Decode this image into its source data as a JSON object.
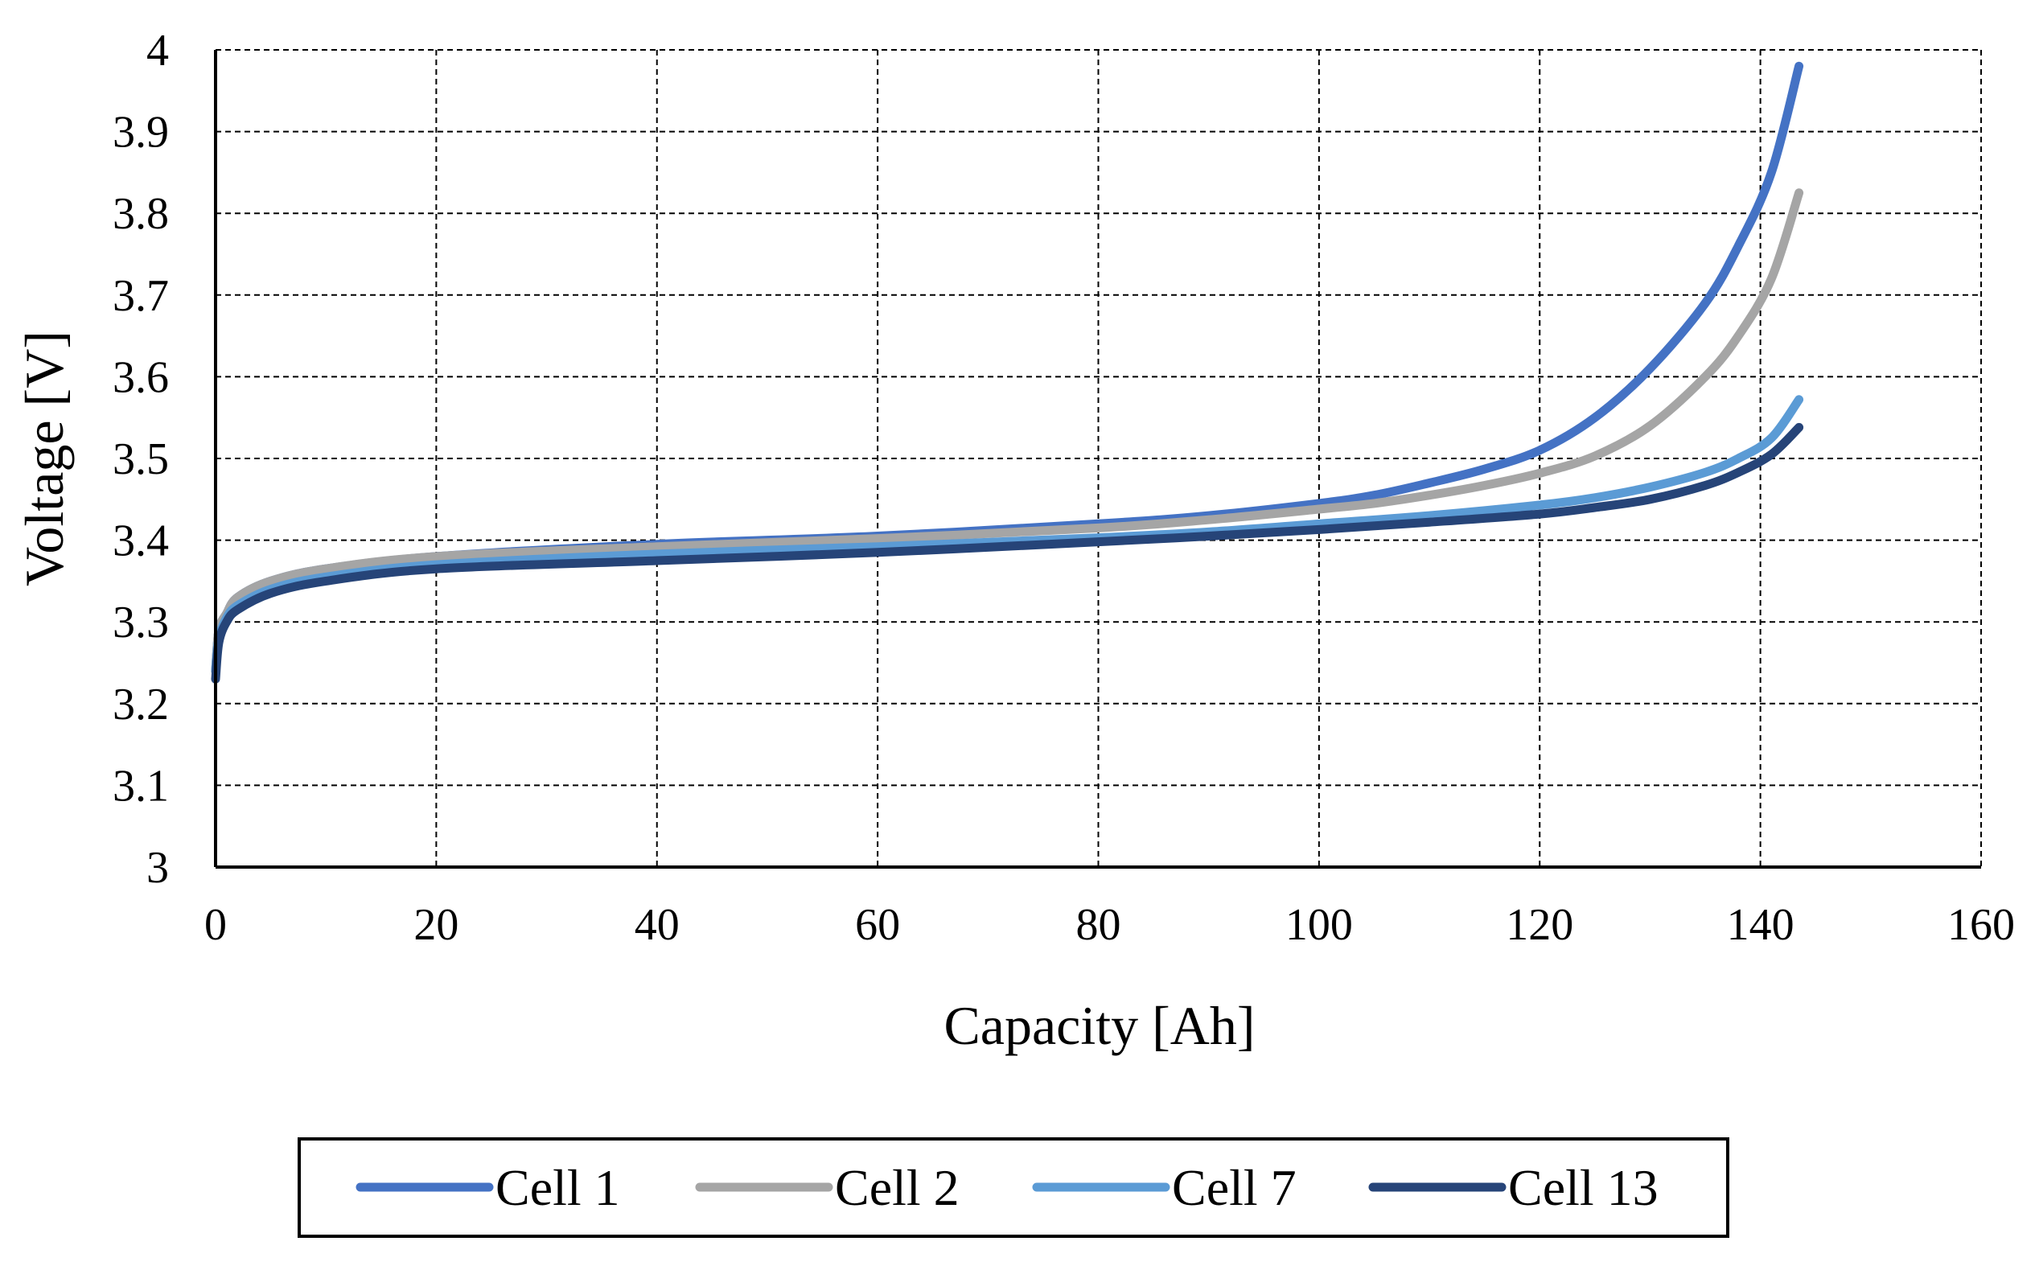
{
  "chart_data": {
    "type": "line",
    "title": "",
    "xlabel": "Capacity [Ah]",
    "ylabel": "Voltage [V]",
    "xlim": [
      0,
      160
    ],
    "ylim": [
      3.0,
      4.0
    ],
    "xticks": [
      0,
      20,
      40,
      60,
      80,
      100,
      120,
      140,
      160
    ],
    "xtick_labels": [
      "0",
      "20",
      "40",
      "60",
      "80",
      "100",
      "120",
      "140",
      "160"
    ],
    "yticks": [
      3.0,
      3.1,
      3.2,
      3.3,
      3.4,
      3.5,
      3.6,
      3.7,
      3.8,
      3.9,
      4.0
    ],
    "ytick_labels": [
      "3",
      "3.1",
      "3.2",
      "3.3",
      "3.4",
      "3.5",
      "3.6",
      "3.7",
      "3.8",
      "3.9",
      "4"
    ],
    "grid": true,
    "legend_position": "bottom",
    "series": [
      {
        "name": "Cell 1",
        "color": "#4472C4",
        "x": [
          0,
          0.3,
          1,
          2,
          5,
          10,
          20,
          40,
          60,
          80,
          90,
          100,
          105,
          110,
          115,
          120,
          125,
          130,
          135,
          138,
          141,
          143.5
        ],
        "y": [
          3.24,
          3.29,
          3.31,
          3.33,
          3.35,
          3.365,
          3.38,
          3.395,
          3.405,
          3.42,
          3.43,
          3.445,
          3.455,
          3.47,
          3.487,
          3.51,
          3.55,
          3.61,
          3.69,
          3.76,
          3.85,
          3.98
        ]
      },
      {
        "name": "Cell 2",
        "color": "#A5A5A5",
        "x": [
          0,
          0.3,
          1,
          2,
          5,
          10,
          20,
          40,
          60,
          80,
          90,
          100,
          105,
          110,
          115,
          120,
          125,
          130,
          135,
          138,
          141,
          143.5
        ],
        "y": [
          3.24,
          3.29,
          3.31,
          3.33,
          3.35,
          3.365,
          3.38,
          3.392,
          3.402,
          3.415,
          3.425,
          3.438,
          3.445,
          3.455,
          3.467,
          3.482,
          3.503,
          3.54,
          3.6,
          3.65,
          3.72,
          3.825
        ]
      },
      {
        "name": "Cell 7",
        "color": "#5B9BD5",
        "x": [
          0,
          0.3,
          1,
          2,
          5,
          10,
          20,
          40,
          60,
          80,
          90,
          100,
          110,
          120,
          125,
          130,
          135,
          138,
          141,
          143.5
        ],
        "y": [
          3.24,
          3.28,
          3.305,
          3.32,
          3.34,
          3.355,
          3.37,
          3.383,
          3.392,
          3.403,
          3.41,
          3.42,
          3.43,
          3.443,
          3.452,
          3.465,
          3.483,
          3.5,
          3.525,
          3.572
        ]
      },
      {
        "name": "Cell 13",
        "color": "#264478",
        "x": [
          0,
          0.3,
          1,
          2,
          5,
          10,
          20,
          40,
          60,
          80,
          90,
          100,
          110,
          120,
          125,
          130,
          135,
          138,
          141,
          143.5
        ],
        "y": [
          3.23,
          3.275,
          3.3,
          3.315,
          3.335,
          3.35,
          3.365,
          3.375,
          3.385,
          3.398,
          3.405,
          3.413,
          3.422,
          3.432,
          3.44,
          3.45,
          3.467,
          3.483,
          3.505,
          3.538
        ]
      }
    ]
  }
}
